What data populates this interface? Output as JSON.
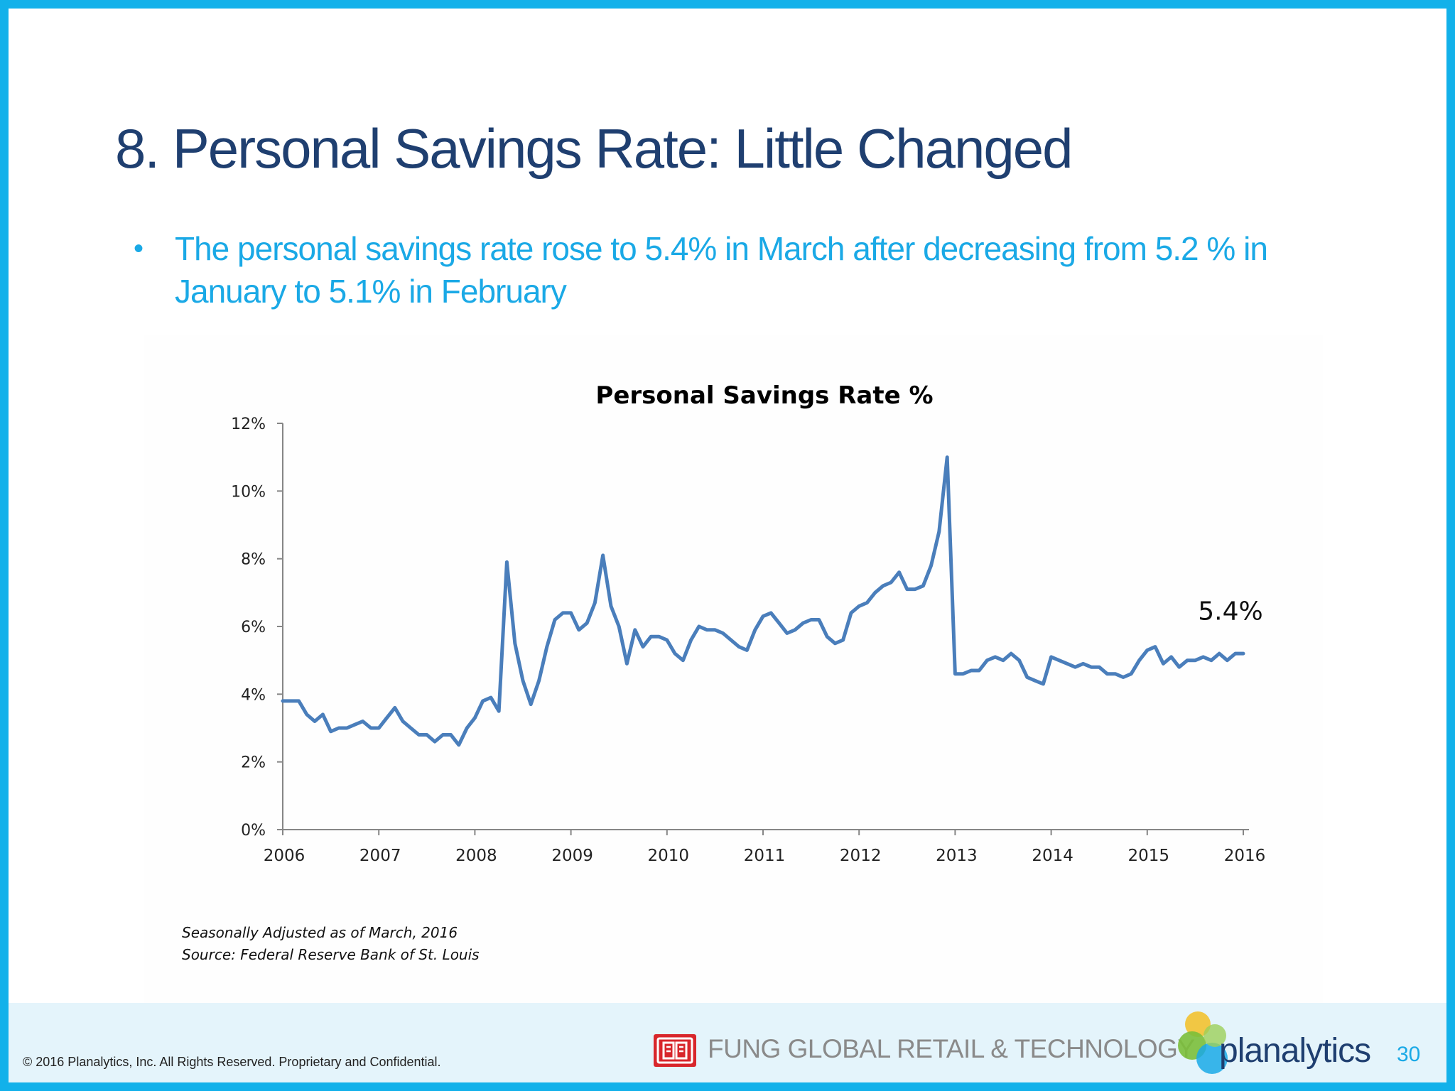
{
  "slide": {
    "title": "8. Personal Savings Rate: Little Changed",
    "bullet": "The personal savings rate rose to 5.4% in March after decreasing from 5.2 % in January to 5.1% in February",
    "notes": [
      "Seasonally Adjusted as of March, 2016",
      "Source: Federal Reserve Bank of St. Louis"
    ],
    "copyright": "© 2016 Planalytics, Inc. All Rights Reserved. Proprietary and Confidential.",
    "fung_label": "FUNG GLOBAL RETAIL & TECHNOLOGY",
    "planalytics_label": "planalytics",
    "page_number": "30",
    "colors": {
      "frame": "#12b1ea",
      "title": "#1f3f70",
      "bullet": "#1aa9e6",
      "line": "#4a7ebb",
      "footer": "#e4f4fb"
    }
  },
  "chart_data": {
    "type": "line",
    "title": "Personal Savings Rate %",
    "xlabel": "",
    "ylabel": "",
    "ylim": [
      0,
      12
    ],
    "xlim": [
      2006,
      2016
    ],
    "yticks": [
      "0%",
      "2%",
      "4%",
      "6%",
      "8%",
      "10%",
      "12%"
    ],
    "xticks": [
      "2006",
      "2007",
      "2008",
      "2009",
      "2010",
      "2011",
      "2012",
      "2013",
      "2014",
      "2015",
      "2016"
    ],
    "grid": false,
    "legend": "none",
    "annotation": {
      "text": "5.4%",
      "x": 2016.0,
      "y": 5.4
    },
    "series": [
      {
        "name": "",
        "x": [
          2006.0,
          2006.083,
          2006.167,
          2006.25,
          2006.333,
          2006.417,
          2006.5,
          2006.583,
          2006.667,
          2006.75,
          2006.833,
          2006.917,
          2007.0,
          2007.083,
          2007.167,
          2007.25,
          2007.333,
          2007.417,
          2007.5,
          2007.583,
          2007.667,
          2007.75,
          2007.833,
          2007.917,
          2008.0,
          2008.083,
          2008.167,
          2008.25,
          2008.333,
          2008.417,
          2008.5,
          2008.583,
          2008.667,
          2008.75,
          2008.833,
          2008.917,
          2009.0,
          2009.083,
          2009.167,
          2009.25,
          2009.333,
          2009.417,
          2009.5,
          2009.583,
          2009.667,
          2009.75,
          2009.833,
          2009.917,
          2010.0,
          2010.083,
          2010.167,
          2010.25,
          2010.333,
          2010.417,
          2010.5,
          2010.583,
          2010.667,
          2010.75,
          2010.833,
          2010.917,
          2011.0,
          2011.083,
          2011.167,
          2011.25,
          2011.333,
          2011.417,
          2011.5,
          2011.583,
          2011.667,
          2011.75,
          2011.833,
          2011.917,
          2012.0,
          2012.083,
          2012.167,
          2012.25,
          2012.333,
          2012.417,
          2012.5,
          2012.583,
          2012.667,
          2012.75,
          2012.833,
          2012.917,
          2013.0,
          2013.083,
          2013.167,
          2013.25,
          2013.333,
          2013.417,
          2013.5,
          2013.583,
          2013.667,
          2013.75,
          2013.833,
          2013.917,
          2014.0,
          2014.083,
          2014.167,
          2014.25,
          2014.333,
          2014.417,
          2014.5,
          2014.583,
          2014.667,
          2014.75,
          2014.833,
          2014.917,
          2015.0,
          2015.083,
          2015.167,
          2015.25,
          2015.333,
          2015.417,
          2015.5,
          2015.583,
          2015.667,
          2015.75,
          2015.833,
          2015.917,
          2016.0
        ],
        "values": [
          3.8,
          3.8,
          3.8,
          3.4,
          3.2,
          3.4,
          2.9,
          3.0,
          3.0,
          3.1,
          3.2,
          3.0,
          3.0,
          3.3,
          3.6,
          3.2,
          3.0,
          2.8,
          2.8,
          2.6,
          2.8,
          2.8,
          2.5,
          3.0,
          3.3,
          3.8,
          3.9,
          3.5,
          7.9,
          5.5,
          4.4,
          3.7,
          4.4,
          5.4,
          6.2,
          6.4,
          6.4,
          5.9,
          6.1,
          6.7,
          8.1,
          6.6,
          6.0,
          4.9,
          5.9,
          5.4,
          5.7,
          5.7,
          5.6,
          5.2,
          5.0,
          5.6,
          6.0,
          5.9,
          5.9,
          5.8,
          5.6,
          5.4,
          5.3,
          5.9,
          6.3,
          6.4,
          6.1,
          5.8,
          5.9,
          6.1,
          6.2,
          6.2,
          5.7,
          5.5,
          5.6,
          6.4,
          6.6,
          6.7,
          7.0,
          7.2,
          7.3,
          7.6,
          7.1,
          7.1,
          7.2,
          7.8,
          8.8,
          11.0,
          4.6,
          4.6,
          4.7,
          4.7,
          5.0,
          5.1,
          5.0,
          5.2,
          5.0,
          4.5,
          4.4,
          4.3,
          5.1,
          5.0,
          4.9,
          4.8,
          4.9,
          4.8,
          4.8,
          4.6,
          4.6,
          4.5,
          4.6,
          5.0,
          5.3,
          5.4,
          4.9,
          5.1,
          4.8,
          5.0,
          5.0,
          5.1,
          5.0,
          5.2,
          5.0,
          5.2,
          5.2
        ]
      }
    ]
  }
}
